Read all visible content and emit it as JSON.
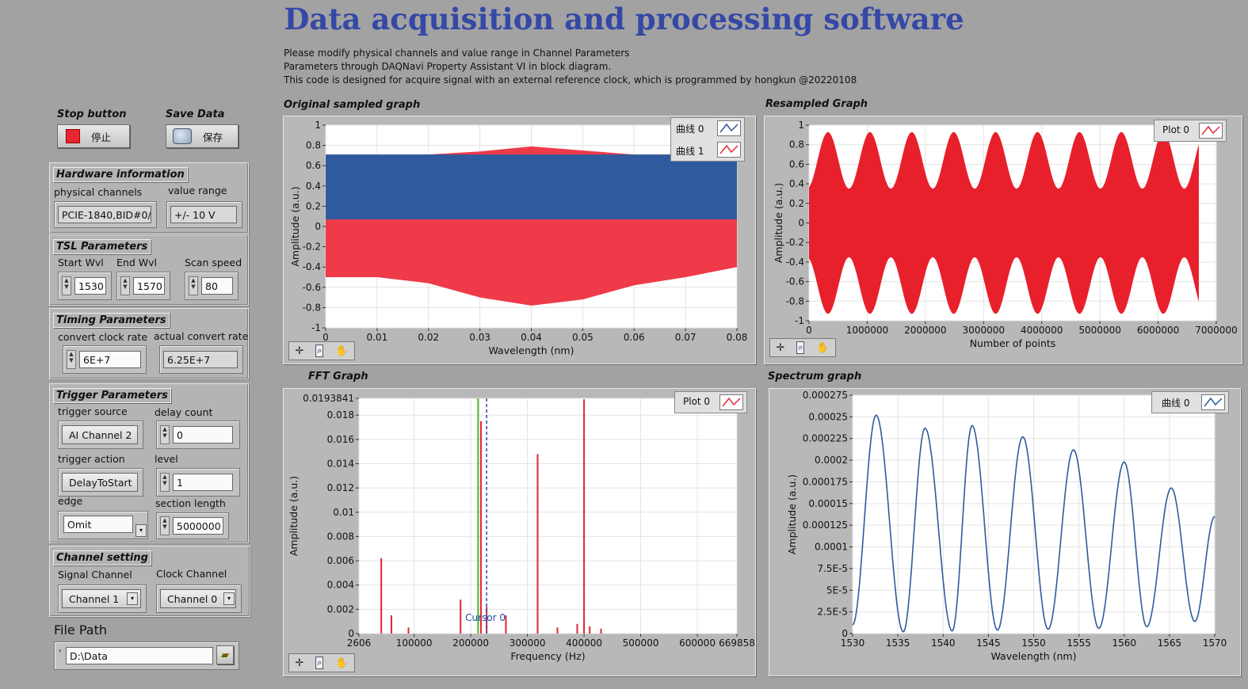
{
  "app_title": "Data acquisition and processing software",
  "description": [
    "Please modify physical channels and value range in Channel Parameters",
    "Parameters through DAQNavi Property Assistant VI  in block diagram.",
    "This code is designed for acquire signal with an external reference clock, which is programmed by hongkun @20220108"
  ],
  "controls": {
    "stop": {
      "label": "Stop button",
      "button_text": "停止",
      "color": "#e8262f"
    },
    "save": {
      "label": "Save Data",
      "button_text": "保存"
    }
  },
  "hardware": {
    "title": "Hardware information",
    "physical_channels_label": "physical channels",
    "physical_channels_value": "PCIE-1840,BID#0/",
    "value_range_label": "value range",
    "value_range_value": "+/- 10 V"
  },
  "tsl": {
    "title": "TSL Parameters",
    "start_label": "Start Wvl",
    "start_value": "1530",
    "end_label": "End Wvl",
    "end_value": "1570",
    "speed_label": "Scan speed",
    "speed_value": "80"
  },
  "timing": {
    "title": "Timing Parameters",
    "clock_label": "convert clock rate",
    "clock_value": "6E+7",
    "actual_label": "actual convert rate",
    "actual_value": "6.25E+7"
  },
  "trigger": {
    "title": "Trigger Parameters",
    "source_label": "trigger source",
    "source_value": "AI Channel 2",
    "delay_label": "delay count",
    "delay_value": "0",
    "action_label": "trigger action",
    "action_value": "DelayToStart",
    "level_label": "level",
    "level_value": "1",
    "edge_label": "edge",
    "edge_value": "Omit",
    "section_label": "section length",
    "section_value": "5000000"
  },
  "channel": {
    "title": "Channel setting",
    "signal_label": "Signal Channel",
    "signal_value": "Channel 1",
    "clock_label": "Clock Channel",
    "clock_value": "Channel 0"
  },
  "file": {
    "label": "File Path",
    "value": "D:\\Data"
  },
  "colors": {
    "blue": "#2f5b9e",
    "red": "#e62e36",
    "cursor": "#2849a8",
    "green": "#4cbb3c",
    "plot_bg": "#ffffff",
    "grid": "#e3e3e3"
  },
  "graphs": {
    "original": {
      "title": "Original sampled graph",
      "legend": [
        "曲线 0",
        "曲线 1"
      ],
      "xlabel": "Wavelength (nm)",
      "ylabel": "Amplitude (a.u.)",
      "xticks": [
        "0",
        "0.01",
        "0.02",
        "0.03",
        "0.04",
        "0.05",
        "0.06",
        "0.07",
        "0.08"
      ],
      "yticks": [
        "1",
        "0.8",
        "0.6",
        "0.4",
        "0.2",
        "0",
        "-0.2",
        "-0.4",
        "-0.6",
        "-0.8",
        "-1"
      ]
    },
    "resampled": {
      "title": "Resampled Graph",
      "legend": [
        "Plot 0"
      ],
      "xlabel": "Number of points",
      "ylabel": "Amplitude (a.u.)",
      "xticks": [
        "0",
        "1000000",
        "2000000",
        "3000000",
        "4000000",
        "5000000",
        "6000000",
        "7000000"
      ],
      "yticks": [
        "1",
        "0.8",
        "0.6",
        "0.4",
        "0.2",
        "0",
        "-0.2",
        "-0.4",
        "-0.6",
        "-0.8",
        "-1"
      ]
    },
    "fft": {
      "title": "FFT Graph",
      "legend": [
        "Plot 0"
      ],
      "xlabel": "Frequency (Hz)",
      "ylabel": "Amplitude (a.u.)",
      "xticks": [
        "2606",
        "100000",
        "200000",
        "300000",
        "400000",
        "500000",
        "600000",
        "669858"
      ],
      "yticks": [
        "0.0193841",
        "0.018",
        "0.016",
        "0.014",
        "0.012",
        "0.01",
        "0.008",
        "0.006",
        "0.004",
        "0.002",
        "0"
      ],
      "cursor_label": "Cursor 0"
    },
    "spectrum": {
      "title": "Spectrum graph",
      "legend": [
        "曲线 0"
      ],
      "xlabel": "Wavelength (nm)",
      "ylabel": "Amplitude (a.u.)",
      "xticks": [
        "1530",
        "1535",
        "1540",
        "1545",
        "1550",
        "1555",
        "1560",
        "1565",
        "1570"
      ],
      "yticks": [
        "0.000275",
        "0.00025",
        "0.000225",
        "0.0002",
        "0.000175",
        "0.00015",
        "0.000125",
        "0.0001",
        "7.5E-5",
        "5E-5",
        "2.5E-5",
        "0"
      ]
    }
  },
  "chart_data": [
    {
      "type": "area",
      "title": "Original sampled graph",
      "xlabel": "Wavelength (nm)",
      "ylabel": "Amplitude (a.u.)",
      "xlim": [
        0,
        0.08
      ],
      "ylim": [
        -1,
        1
      ],
      "series": [
        {
          "name": "曲线 0",
          "upper": 0.71,
          "lower": 0.07
        },
        {
          "name": "曲线 1",
          "x": [
            0,
            0.01,
            0.02,
            0.03,
            0.04,
            0.05,
            0.06,
            0.07,
            0.08
          ],
          "upper": [
            0.71,
            0.71,
            0.71,
            0.74,
            0.79,
            0.75,
            0.71,
            0.71,
            0.71
          ],
          "lower": [
            -0.5,
            -0.5,
            -0.56,
            -0.7,
            -0.78,
            -0.72,
            -0.58,
            -0.5,
            -0.4
          ]
        }
      ]
    },
    {
      "type": "area",
      "title": "Resampled Graph",
      "xlabel": "Number of points",
      "ylabel": "Amplitude (a.u.)",
      "xlim": [
        0,
        7000000
      ],
      "ylim": [
        -1,
        1
      ],
      "series": [
        {
          "name": "Plot 0",
          "x_end": 6700000,
          "envelope_max": 0.93,
          "envelope_min": 0.35,
          "periods": 9.3
        }
      ]
    },
    {
      "type": "bar",
      "title": "FFT Graph",
      "xlabel": "Frequency (Hz)",
      "ylabel": "Amplitude (a.u.)",
      "xlim": [
        2606,
        669858
      ],
      "ylim": [
        0,
        0.0193841
      ],
      "series": [
        {
          "name": "Plot 0",
          "x": [
            42000,
            60000,
            90000,
            182000,
            213000,
            218000,
            228000,
            262000,
            318000,
            353000,
            388000,
            400000,
            410000,
            430000
          ],
          "values": [
            0.0062,
            0.0015,
            0.0005,
            0.0028,
            0.0193,
            0.0175,
            0.0022,
            0.0015,
            0.0148,
            0.0005,
            0.0008,
            0.0193,
            0.0006,
            0.0004
          ]
        }
      ],
      "markers": {
        "green_line_x": 213000,
        "cursor_x": 228000
      }
    },
    {
      "type": "line",
      "title": "Spectrum graph",
      "xlabel": "Wavelength (nm)",
      "ylabel": "Amplitude (a.u.)",
      "xlim": [
        1530,
        1570
      ],
      "ylim": [
        0,
        0.000275
      ],
      "series": [
        {
          "name": "曲线 0",
          "x": [
            1530,
            1532.6,
            1535.6,
            1538,
            1541,
            1543.2,
            1546,
            1548.8,
            1551.6,
            1554.4,
            1557.2,
            1560,
            1562.5,
            1565.2,
            1567.8,
            1570
          ],
          "y": [
            1e-05,
            0.000252,
            2e-06,
            0.000237,
            3e-06,
            0.00024,
            4e-06,
            0.000227,
            5e-06,
            0.000212,
            6e-06,
            0.000198,
            8e-06,
            0.000168,
            1.4e-05,
            0.000135
          ]
        }
      ]
    }
  ]
}
